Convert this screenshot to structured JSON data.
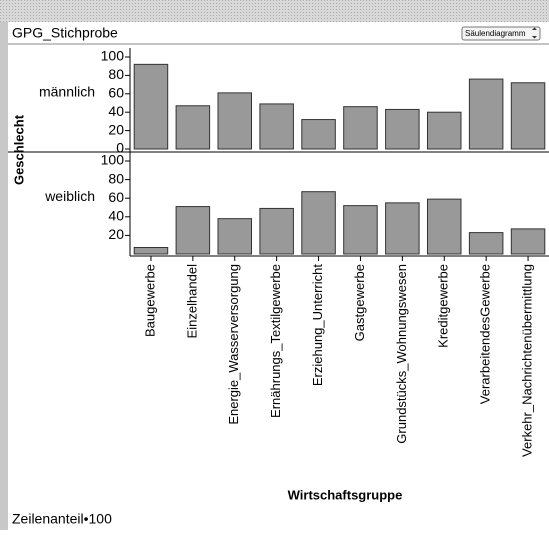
{
  "chart_data": {
    "type": "bar",
    "title": "GPG_Stichprobe",
    "chart_menu": "Säulendiagramm",
    "y_label": "Geschlecht",
    "x_label": "Wirtschaftsgruppe",
    "footer": "Zeilenanteil•100",
    "categories": [
      "Baugewerbe",
      "Einzelhandel",
      "Energie_Wasserversorgung",
      "Ernährungs_Textilgewerbe",
      "Erziehung_Unterricht",
      "Gastgewerbe",
      "Grundstücks_Wohnungswesen",
      "Kreditgewerbe",
      "VerarbeitendesGewerbe",
      "Verkehr_Nachrichtenübermittlung"
    ],
    "series": [
      {
        "name": "männlich",
        "values": [
          92,
          47,
          61,
          49,
          32,
          46,
          43,
          40,
          76,
          72
        ],
        "yticks": [
          0,
          20,
          40,
          60,
          80,
          100
        ]
      },
      {
        "name": "weiblich",
        "values": [
          7,
          51,
          38,
          49,
          67,
          52,
          55,
          59,
          23,
          27
        ],
        "yticks": [
          20,
          40,
          60,
          80,
          100
        ]
      }
    ],
    "ylim": [
      0,
      100
    ],
    "color": "#999999"
  }
}
